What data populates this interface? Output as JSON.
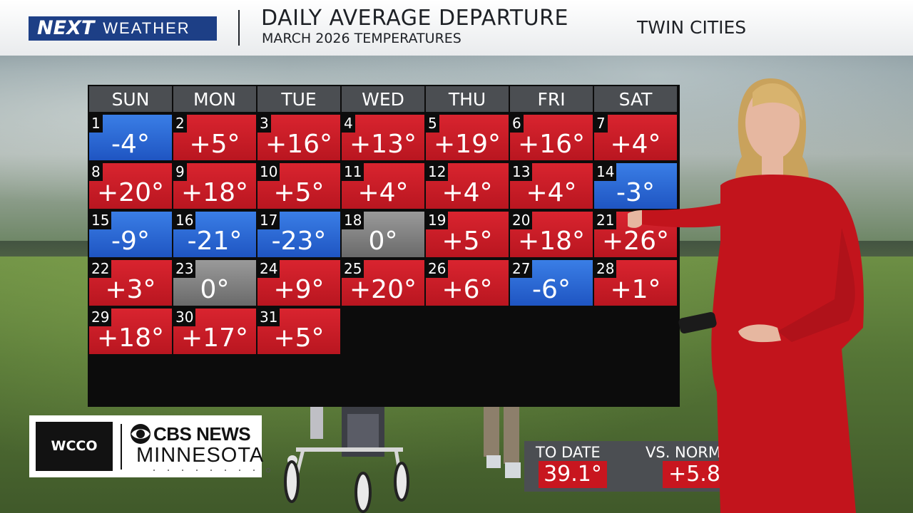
{
  "header": {
    "brand_next": "NEXT",
    "brand_weather": "WEATHER",
    "title": "DAILY AVERAGE DEPARTURE",
    "subtitle": "MARCH 2026 TEMPERATURES",
    "location": "TWIN CITIES"
  },
  "calendar": {
    "weekdays": [
      "SUN",
      "MON",
      "TUE",
      "WED",
      "THU",
      "FRI",
      "SAT"
    ],
    "start_weekday_index": 0,
    "days": [
      {
        "day": "1",
        "departure": "-4°",
        "kind": "cold"
      },
      {
        "day": "2",
        "departure": "+5°",
        "kind": "warm"
      },
      {
        "day": "3",
        "departure": "+16°",
        "kind": "warm"
      },
      {
        "day": "4",
        "departure": "+13°",
        "kind": "warm"
      },
      {
        "day": "5",
        "departure": "+19°",
        "kind": "warm"
      },
      {
        "day": "6",
        "departure": "+16°",
        "kind": "warm"
      },
      {
        "day": "7",
        "departure": "+4°",
        "kind": "warm"
      },
      {
        "day": "8",
        "departure": "+20°",
        "kind": "warm"
      },
      {
        "day": "9",
        "departure": "+18°",
        "kind": "warm"
      },
      {
        "day": "10",
        "departure": "+5°",
        "kind": "warm"
      },
      {
        "day": "11",
        "departure": "+4°",
        "kind": "warm"
      },
      {
        "day": "12",
        "departure": "+4°",
        "kind": "warm"
      },
      {
        "day": "13",
        "departure": "+4°",
        "kind": "warm"
      },
      {
        "day": "14",
        "departure": "-3°",
        "kind": "cold"
      },
      {
        "day": "15",
        "departure": "-9°",
        "kind": "cold"
      },
      {
        "day": "16",
        "departure": "-21°",
        "kind": "cold"
      },
      {
        "day": "17",
        "departure": "-23°",
        "kind": "cold"
      },
      {
        "day": "18",
        "departure": "0°",
        "kind": "zero"
      },
      {
        "day": "19",
        "departure": "+5°",
        "kind": "warm"
      },
      {
        "day": "20",
        "departure": "+18°",
        "kind": "warm"
      },
      {
        "day": "21",
        "departure": "+26°",
        "kind": "warm"
      },
      {
        "day": "22",
        "departure": "+3°",
        "kind": "warm"
      },
      {
        "day": "23",
        "departure": "0°",
        "kind": "zero"
      },
      {
        "day": "24",
        "departure": "+9°",
        "kind": "warm"
      },
      {
        "day": "25",
        "departure": "+20°",
        "kind": "warm"
      },
      {
        "day": "26",
        "departure": "+6°",
        "kind": "warm"
      },
      {
        "day": "27",
        "departure": "-6°",
        "kind": "cold"
      },
      {
        "day": "28",
        "departure": "+1°",
        "kind": "warm"
      },
      {
        "day": "29",
        "departure": "+18°",
        "kind": "warm"
      },
      {
        "day": "30",
        "departure": "+17°",
        "kind": "warm"
      },
      {
        "day": "31",
        "departure": "+5°",
        "kind": "warm"
      }
    ]
  },
  "summary": {
    "to_date_label": "TO DATE",
    "to_date_value": "39.1°",
    "vs_normal_label": "VS. NORMAL",
    "vs_normal_value": "+5.8°"
  },
  "station": {
    "call_letters": "WCCO",
    "network": "CBS NEWS",
    "region": "MINNESOTA"
  },
  "colors": {
    "warm": "#c8161f",
    "cold": "#2a66d6",
    "zero": "#7f7f7f",
    "brand_blue": "#1d3f86"
  }
}
